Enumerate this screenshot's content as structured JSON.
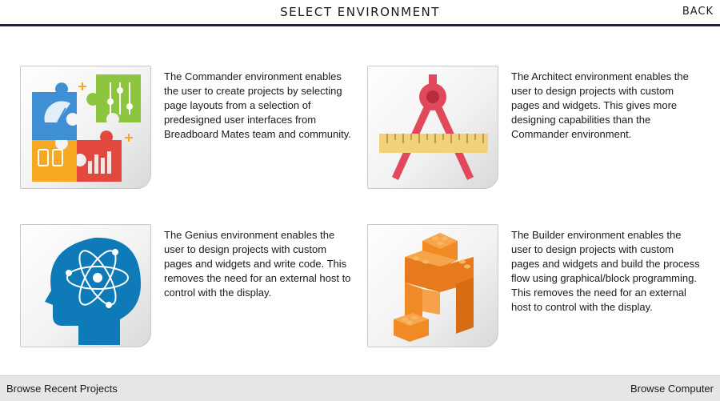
{
  "header": {
    "title": "SELECT ENVIRONMENT",
    "back_label": "BACK"
  },
  "environments": [
    {
      "name": "Commander",
      "icon": "puzzle-icon",
      "description": "The Commander environment enables the user to create projects by selecting page layouts from a selection of predesigned user interfaces from Breadboard Mates team and community."
    },
    {
      "name": "Architect",
      "icon": "compass-ruler-icon",
      "description": "The Architect environment enables the user to design projects with custom pages and widgets. This gives more designing capabilities than the Commander environment."
    },
    {
      "name": "Genius",
      "icon": "atom-head-icon",
      "description": "The Genius environment enables the user to design projects with custom pages and widgets and write code. This removes the need for an external host to control with the display."
    },
    {
      "name": "Builder",
      "icon": "building-blocks-icon",
      "description": "The Builder environment enables the user to design projects with custom pages and widgets and build the process flow using graphical/block programming. This removes the need for an external host to control with the display."
    }
  ],
  "footer": {
    "left_label": "Browse Recent Projects",
    "right_label": "Browse Computer"
  },
  "colors": {
    "header_rule": "#1b2233",
    "footer_bg": "#e6e6e6"
  }
}
